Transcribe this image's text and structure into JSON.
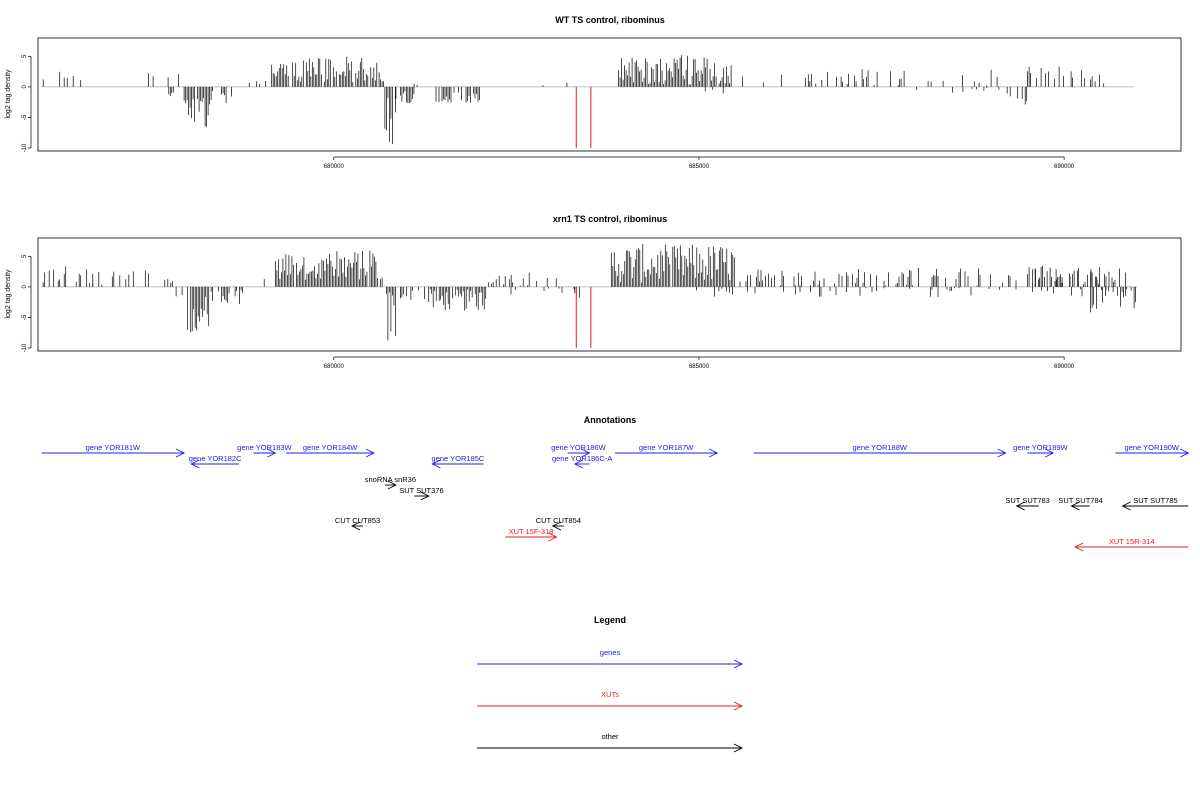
{
  "chart_data": [
    {
      "type": "bar",
      "title": "WT TS control, ribominus",
      "ylabel": "log2 tag density",
      "xlabel": "",
      "xlim": [
        675950,
        691600
      ],
      "ylim": [
        -10.5,
        8
      ],
      "xticks": [
        680000,
        685000,
        690000
      ],
      "yticks": [
        -10,
        -5,
        0,
        5
      ],
      "baseline_range": [
        676000,
        690950
      ],
      "markers": {
        "color": "#e02020",
        "x": [
          683320,
          683520
        ],
        "value": -10
      },
      "segments": [
        {
          "from": 676000,
          "to": 676550,
          "base": 1.8,
          "amp": 0.8,
          "density": 0.25
        },
        {
          "from": 676550,
          "to": 677050,
          "base": 1.2,
          "amp": 1.2,
          "density": 0.08
        },
        {
          "from": 677300,
          "to": 677900,
          "base": 1.4,
          "amp": 1.0,
          "density": 0.15
        },
        {
          "from": 677700,
          "to": 677950,
          "base": -1.2,
          "amp": 0.8,
          "density": 0.3
        },
        {
          "from": 677950,
          "to": 678300,
          "base": -4.5,
          "amp": 3.0,
          "density": 0.9
        },
        {
          "from": 678300,
          "to": 678600,
          "base": -2.0,
          "amp": 1.3,
          "density": 0.5
        },
        {
          "from": 678600,
          "to": 678750,
          "base": -1.5,
          "amp": 1.0,
          "density": 0.25
        },
        {
          "from": 678800,
          "to": 679150,
          "base": 0.6,
          "amp": 0.4,
          "density": 0.08
        },
        {
          "from": 679150,
          "to": 679500,
          "base": 2.7,
          "amp": 1.3,
          "density": 0.9
        },
        {
          "from": 679500,
          "to": 680600,
          "base": 2.9,
          "amp": 2.2,
          "density": 0.9
        },
        {
          "from": 680600,
          "to": 680700,
          "base": 1.5,
          "amp": 1.0,
          "density": 0.3
        },
        {
          "from": 680700,
          "to": 680850,
          "base": -5.0,
          "amp": 4.5,
          "density": 0.95
        },
        {
          "from": 680850,
          "to": 681100,
          "base": -1.8,
          "amp": 1.3,
          "density": 0.6
        },
        {
          "from": 681100,
          "to": 681400,
          "base": 0.3,
          "amp": 0.3,
          "density": 0.05
        },
        {
          "from": 681400,
          "to": 682000,
          "base": -1.8,
          "amp": 1.2,
          "density": 0.7
        },
        {
          "from": 682000,
          "to": 683200,
          "base": 0.4,
          "amp": 0.5,
          "density": 0.03
        },
        {
          "from": 683200,
          "to": 683300,
          "base": 1.0,
          "amp": 0.5,
          "density": 0.1
        },
        {
          "from": 683900,
          "to": 685450,
          "base": 2.8,
          "amp": 2.5,
          "density": 0.95
        },
        {
          "from": 684900,
          "to": 685450,
          "base": -0.6,
          "amp": 0.8,
          "density": 0.15
        },
        {
          "from": 685450,
          "to": 686700,
          "base": 1.3,
          "amp": 1.0,
          "density": 0.12
        },
        {
          "from": 686700,
          "to": 689200,
          "base": 1.6,
          "amp": 1.4,
          "density": 0.22
        },
        {
          "from": 687300,
          "to": 689300,
          "base": -0.5,
          "amp": 0.5,
          "density": 0.05
        },
        {
          "from": 689200,
          "to": 689500,
          "base": -1.8,
          "amp": 1.3,
          "density": 0.35
        },
        {
          "from": 689500,
          "to": 690500,
          "base": 2.0,
          "amp": 1.5,
          "density": 0.4
        },
        {
          "from": 690500,
          "to": 690950,
          "base": 0.8,
          "amp": 0.8,
          "density": 0.12
        },
        {
          "from": 690850,
          "to": 690950,
          "base": -1.8,
          "amp": 1.0,
          "density": 0.2
        }
      ]
    },
    {
      "type": "bar",
      "title": "xrn1 TS control, ribominus",
      "ylabel": "log2 tag density",
      "xlabel": "",
      "xlim": [
        675950,
        691600
      ],
      "ylim": [
        -10.5,
        8
      ],
      "xticks": [
        680000,
        685000,
        690000
      ],
      "yticks": [
        -10,
        -5,
        0,
        5
      ],
      "baseline_range": [
        676000,
        691000
      ],
      "markers": {
        "color": "#e02020",
        "x": [
          683320,
          683520
        ],
        "value": -10
      },
      "segments": [
        {
          "from": 676000,
          "to": 676700,
          "base": 2.0,
          "amp": 1.5,
          "density": 0.5
        },
        {
          "from": 676700,
          "to": 677800,
          "base": 1.5,
          "amp": 1.2,
          "density": 0.2
        },
        {
          "from": 677800,
          "to": 678000,
          "base": -1.3,
          "amp": 0.8,
          "density": 0.3
        },
        {
          "from": 678000,
          "to": 678300,
          "base": -4.5,
          "amp": 3.0,
          "density": 0.9
        },
        {
          "from": 678300,
          "to": 678800,
          "base": -1.8,
          "amp": 1.3,
          "density": 0.55
        },
        {
          "from": 678800,
          "to": 679200,
          "base": 0.8,
          "amp": 0.5,
          "density": 0.1
        },
        {
          "from": 679200,
          "to": 680600,
          "base": 3.5,
          "amp": 2.5,
          "density": 0.95
        },
        {
          "from": 680600,
          "to": 680700,
          "base": 1.0,
          "amp": 0.8,
          "density": 0.3
        },
        {
          "from": 680700,
          "to": 680850,
          "base": -5.0,
          "amp": 5.0,
          "density": 0.95
        },
        {
          "from": 680850,
          "to": 681300,
          "base": -1.2,
          "amp": 1.0,
          "density": 0.35
        },
        {
          "from": 681300,
          "to": 682100,
          "base": -2.2,
          "amp": 1.8,
          "density": 0.85
        },
        {
          "from": 682100,
          "to": 683300,
          "base": 1.3,
          "amp": 1.2,
          "density": 0.25
        },
        {
          "from": 682200,
          "to": 683300,
          "base": -0.8,
          "amp": 0.6,
          "density": 0.1
        },
        {
          "from": 683300,
          "to": 683500,
          "base": -1.2,
          "amp": 0.8,
          "density": 0.2
        },
        {
          "from": 683800,
          "to": 685500,
          "base": 3.8,
          "amp": 3.2,
          "density": 0.98
        },
        {
          "from": 684800,
          "to": 685500,
          "base": -0.8,
          "amp": 0.8,
          "density": 0.2
        },
        {
          "from": 685500,
          "to": 690950,
          "base": 1.6,
          "amp": 1.5,
          "density": 0.35
        },
        {
          "from": 685500,
          "to": 690950,
          "base": -0.9,
          "amp": 0.8,
          "density": 0.12
        },
        {
          "from": 689500,
          "to": 690500,
          "base": 2.2,
          "amp": 1.3,
          "density": 0.55
        },
        {
          "from": 690300,
          "to": 691000,
          "base": -2.0,
          "amp": 2.2,
          "density": 0.35
        }
      ]
    }
  ],
  "annotations": {
    "title": "Annotations",
    "features": [
      {
        "label": "gene YOR181W",
        "start": 676000,
        "end": 677950,
        "row": 0,
        "color": "#2020e0"
      },
      {
        "label": "gene YOR182C",
        "start": 678700,
        "end": 678050,
        "row": 1,
        "color": "#2020e0"
      },
      {
        "label": "gene YOR183W",
        "start": 678900,
        "end": 679200,
        "row": 0,
        "color": "#2020e0"
      },
      {
        "label": "gene YOR184W",
        "start": 679350,
        "end": 680550,
        "row": 0,
        "color": "#2020e0"
      },
      {
        "label": "gene YOR185C",
        "start": 682050,
        "end": 681350,
        "row": 1,
        "color": "#2020e0"
      },
      {
        "label": "gene YOR186W",
        "start": 683200,
        "end": 683500,
        "row": 0,
        "color": "#2020e0"
      },
      {
        "label": "gene YOR186C-A",
        "start": 683500,
        "end": 683300,
        "row": 1,
        "color": "#2020e0"
      },
      {
        "label": "gene YOR187W",
        "start": 683850,
        "end": 685250,
        "row": 0,
        "color": "#2020e0"
      },
      {
        "label": "gene YOR188W",
        "start": 685750,
        "end": 689200,
        "row": 0,
        "color": "#2020e0"
      },
      {
        "label": "gene YOR189W",
        "start": 689500,
        "end": 689850,
        "row": 0,
        "color": "#2020e0"
      },
      {
        "label": "gene YOR190W",
        "start": 690700,
        "end": 691700,
        "row": 0,
        "color": "#2020e0"
      },
      {
        "label": "snoRNA snR36",
        "start": 680700,
        "end": 680850,
        "row": 2,
        "color": "#000000"
      },
      {
        "label": "SUT SUT376",
        "start": 681100,
        "end": 681300,
        "row": 3,
        "color": "#000000"
      },
      {
        "label": "SUT SUT783",
        "start": 689650,
        "end": 689350,
        "row": 4,
        "color": "#000000"
      },
      {
        "label": "SUT SUT784",
        "start": 690350,
        "end": 690100,
        "row": 4,
        "color": "#000000"
      },
      {
        "label": "SUT SUT785",
        "start": 691700,
        "end": 690800,
        "row": 4,
        "color": "#000000"
      },
      {
        "label": "CUT CUT853",
        "start": 680400,
        "end": 680250,
        "row": 5,
        "color": "#000000"
      },
      {
        "label": "CUT CUT854",
        "start": 683150,
        "end": 683000,
        "row": 5,
        "color": "#000000"
      },
      {
        "label": "XUT 15F-318",
        "start": 682350,
        "end": 683050,
        "row": 6,
        "color": "#e02020"
      },
      {
        "label": "XUT 15R-314",
        "start": 691700,
        "end": 690150,
        "row": 7,
        "color": "#e02020"
      }
    ]
  },
  "legend": {
    "title": "Legend",
    "items": [
      {
        "label": "genes",
        "color": "#2020e0"
      },
      {
        "label": "XUTs",
        "color": "#e02020"
      },
      {
        "label": "other",
        "color": "#000000"
      }
    ]
  }
}
